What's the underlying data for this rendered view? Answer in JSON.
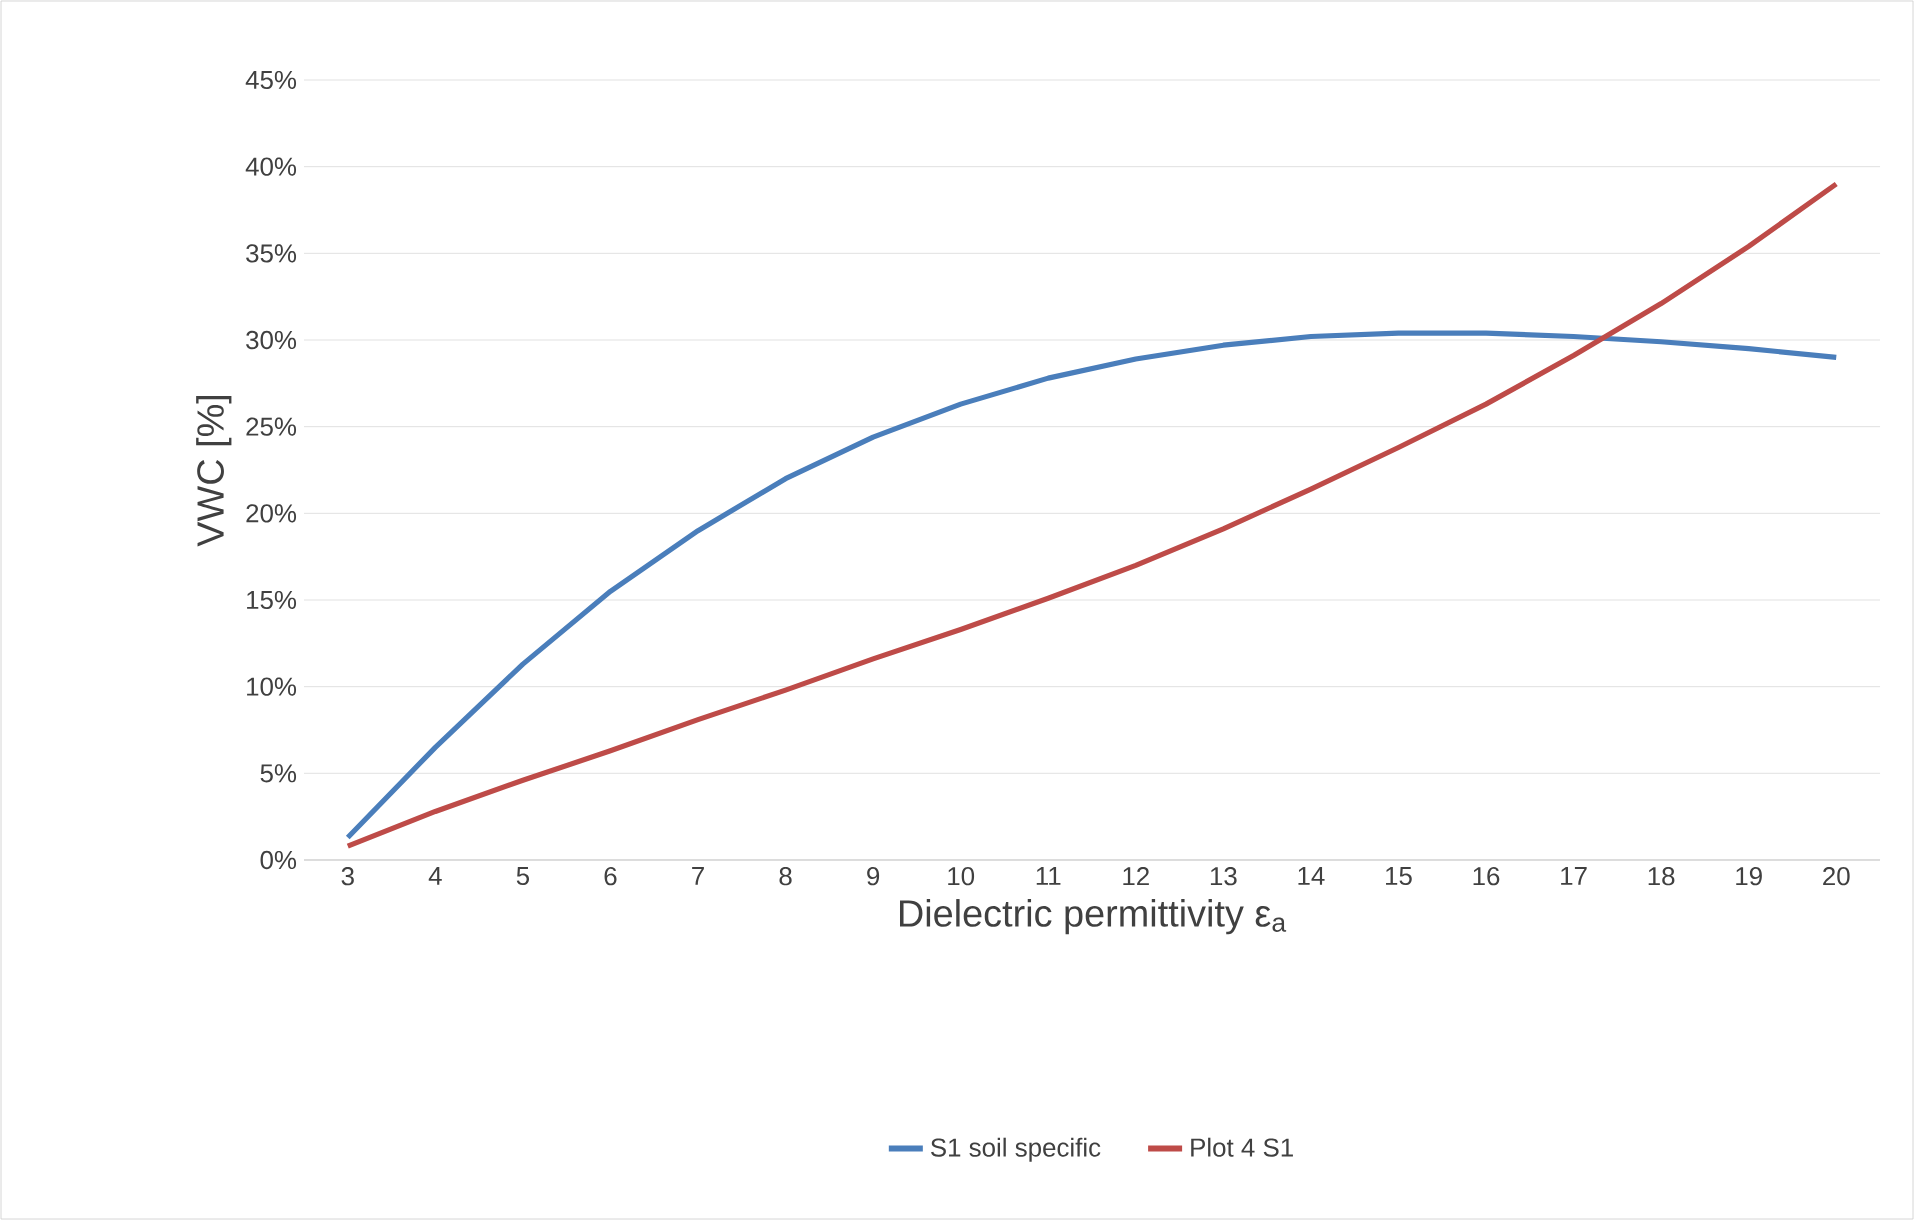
{
  "chart_data": {
    "type": "line",
    "xlabel": "Dielectric permittivity ε$_{a}$",
    "ylabel": "VWC [%]",
    "categories": [
      "3",
      "4",
      "5",
      "6",
      "7",
      "8",
      "9",
      "10",
      "11",
      "12",
      "13",
      "14",
      "15",
      "16",
      "17",
      "18",
      "19",
      "20"
    ],
    "series": [
      {
        "name": "S1 soil specific",
        "color": "#4a7ebb",
        "values": [
          1.3,
          6.5,
          11.3,
          15.5,
          19.0,
          22.0,
          24.4,
          26.3,
          27.8,
          28.9,
          29.7,
          30.2,
          30.4,
          30.4,
          30.2,
          29.9,
          29.5,
          29.0
        ]
      },
      {
        "name": "Plot 4 S1",
        "color": "#be4b48",
        "values": [
          0.8,
          2.8,
          4.6,
          6.3,
          8.1,
          9.8,
          11.6,
          13.3,
          15.1,
          17.0,
          19.1,
          21.4,
          23.8,
          26.3,
          29.1,
          32.1,
          35.4,
          39.0
        ]
      }
    ],
    "ylim": [
      0,
      45
    ],
    "yticks": [
      {
        "value": 0,
        "label": "0%"
      },
      {
        "value": 5,
        "label": "5%"
      },
      {
        "value": 10,
        "label": "10%"
      },
      {
        "value": 15,
        "label": "15%"
      },
      {
        "value": 20,
        "label": "20%"
      },
      {
        "value": 25,
        "label": "25%"
      },
      {
        "value": 30,
        "label": "30%"
      },
      {
        "value": 35,
        "label": "35%"
      },
      {
        "value": 40,
        "label": "40%"
      },
      {
        "value": 45,
        "label": "45%"
      }
    ],
    "grid": "y",
    "legend": "bottom",
    "marker": "none",
    "line_style": "solid"
  }
}
